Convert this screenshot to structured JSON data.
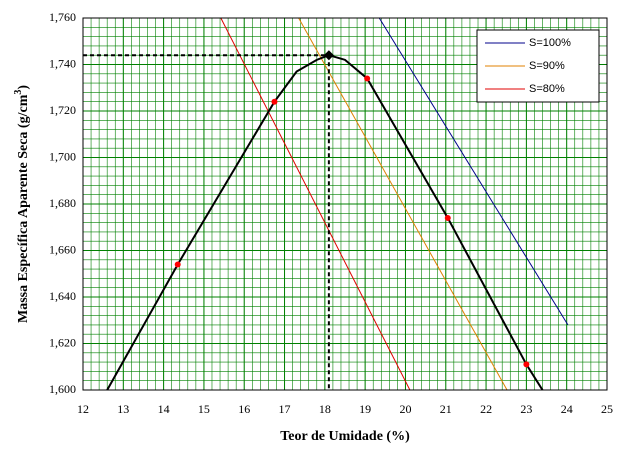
{
  "chart_data": {
    "type": "line",
    "xlabel": "Teor de Umidade (%)",
    "ylabel": [
      "Massa Específica Aparente Seca (g/cm",
      "3",
      ")"
    ],
    "xlim": [
      12,
      25
    ],
    "xticks": [
      12,
      13,
      14,
      15,
      16,
      17,
      18,
      19,
      20,
      21,
      22,
      23,
      24,
      25
    ],
    "ylim": [
      1.6,
      1.76
    ],
    "yticks": [
      {
        "value": 1.6,
        "label": "1,600"
      },
      {
        "value": 1.62,
        "label": "1,620"
      },
      {
        "value": 1.64,
        "label": "1,640"
      },
      {
        "value": 1.66,
        "label": "1,660"
      },
      {
        "value": 1.68,
        "label": "1,680"
      },
      {
        "value": 1.7,
        "label": "1,700"
      },
      {
        "value": 1.72,
        "label": "1,720"
      },
      {
        "value": 1.74,
        "label": "1,740"
      },
      {
        "value": 1.76,
        "label": "1,760"
      }
    ],
    "grid": true,
    "grid_color": "#008000",
    "legend": "upper right",
    "curve": {
      "color": "#000000",
      "x": [
        12.6,
        14.35,
        16.75,
        17.3,
        17.8,
        18.1,
        18.5,
        19.05,
        21.05,
        23.0,
        23.4
      ],
      "values": [
        1.6,
        1.654,
        1.724,
        1.737,
        1.742,
        1.744,
        1.742,
        1.734,
        1.674,
        1.611,
        1.6
      ]
    },
    "points": {
      "color": "#ff0000",
      "x": [
        14.35,
        16.75,
        19.05,
        21.05,
        23.0
      ],
      "values": [
        1.654,
        1.724,
        1.734,
        1.674,
        1.611
      ]
    },
    "max_point": {
      "x": 18.1,
      "y": 1.744,
      "color": "#000000"
    },
    "series": [
      {
        "name": "S=100%",
        "color": "#00008b",
        "x": [
          19.35,
          24.03
        ],
        "values": [
          1.76,
          1.628
        ]
      },
      {
        "name": "S=90%",
        "color": "#e08000",
        "x": [
          17.35,
          22.52
        ],
        "values": [
          1.76,
          1.6
        ]
      },
      {
        "name": "S=80%",
        "color": "#e00000",
        "x": [
          15.42,
          20.11
        ],
        "values": [
          1.76,
          1.6
        ]
      }
    ]
  }
}
